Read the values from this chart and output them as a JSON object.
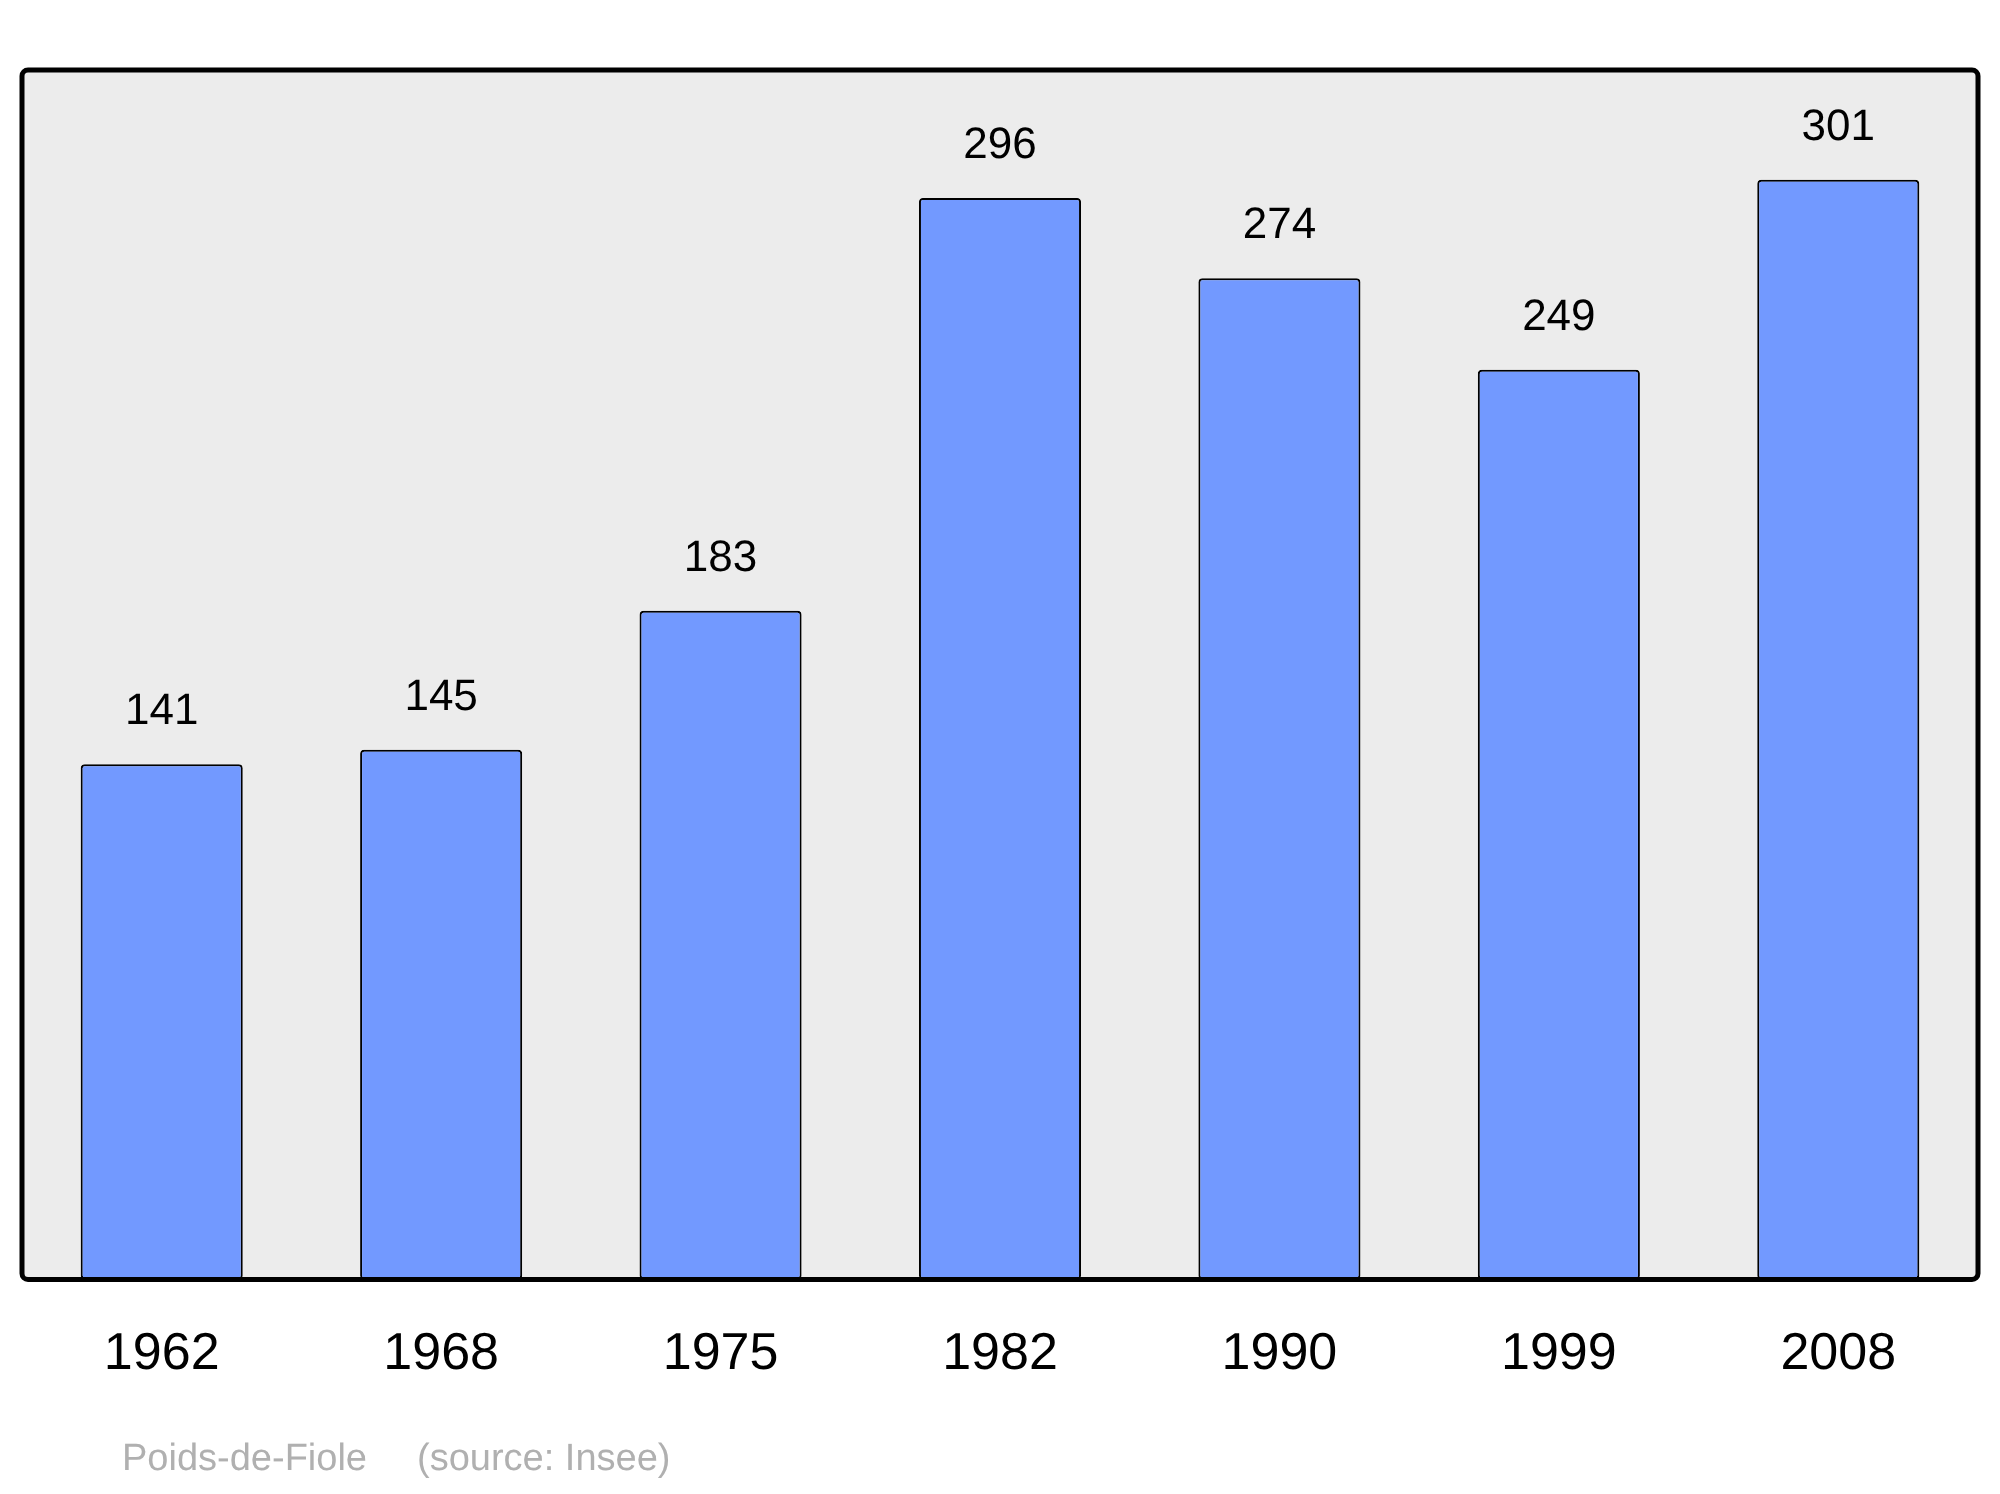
{
  "chart_data": {
    "type": "bar",
    "categories": [
      "1962",
      "1968",
      "1975",
      "1982",
      "1990",
      "1999",
      "2008"
    ],
    "values": [
      141,
      145,
      183,
      296,
      274,
      249,
      301
    ],
    "color": "#7299ff",
    "ylim": [
      0,
      331
    ],
    "data_labels": true,
    "tick_labels": "x",
    "grid": false,
    "legend": false,
    "annotations": [
      "Poids-de-Fiole",
      "(source: Insee)"
    ]
  }
}
